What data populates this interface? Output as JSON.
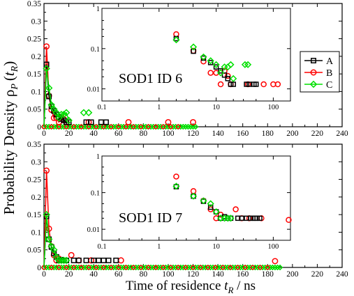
{
  "figure": {
    "ylabel_main": "Probability Density ρ",
    "ylabel_sub": "P",
    "ylabel_paren_open": "(",
    "ylabel_t": "t",
    "ylabel_t_sub": "R",
    "ylabel_paren_close": ")",
    "xlabel_main": "Time of residence ",
    "xlabel_t": "t",
    "xlabel_sub": "R",
    "xlabel_unit": " / ns"
  },
  "legend": {
    "entries": [
      "A",
      "B",
      "C"
    ],
    "colors": {
      "A": "#000000",
      "B": "#ff0000",
      "C": "#00e000"
    },
    "markers": {
      "A": "square",
      "B": "circle",
      "C": "diamond"
    },
    "placement": "right of inset, top panel"
  },
  "chart_data": [
    {
      "type": "line",
      "panel": "top",
      "xlim": [
        0,
        240
      ],
      "ylim": [
        0,
        0.35
      ],
      "xticks": [
        "0",
        "20",
        "40",
        "60",
        "80",
        "100",
        "120",
        "140",
        "160",
        "180",
        "200",
        "220",
        "240"
      ],
      "yticks": [
        "0",
        "0.05",
        "0.1",
        "0.15",
        "0.2",
        "0.25",
        "0.3",
        "0.35"
      ],
      "series": [
        {
          "name": "A",
          "points": [
            [
              2,
              0.177
            ],
            [
              4,
              0.086
            ],
            [
              6,
              0.058
            ],
            [
              8,
              0.045
            ],
            [
              10,
              0.035
            ],
            [
              12,
              0.028
            ],
            [
              14,
              0.022
            ],
            [
              16,
              0.018
            ],
            [
              18,
              0.013
            ],
            [
              20,
              0.013
            ],
            [
              34,
              0.013
            ],
            [
              38,
              0.013
            ],
            [
              46,
              0.013
            ],
            [
              50,
              0.013
            ]
          ]
        },
        {
          "name": "B",
          "points": [
            [
              2,
              0.228
            ],
            [
              4,
              0.088
            ],
            [
              6,
              0.048
            ],
            [
              8,
              0.025
            ],
            [
              10,
              0.025
            ],
            [
              12,
              0.013
            ],
            [
              14,
              0.028
            ],
            [
              16,
              0.021
            ],
            [
              18,
              0.013
            ],
            [
              36,
              0.013
            ],
            [
              68,
              0.013
            ],
            [
              100,
              0.013
            ],
            [
              120,
              0.013
            ]
          ]
        },
        {
          "name": "C",
          "points": [
            [
              2,
              0.165
            ],
            [
              4,
              0.11
            ],
            [
              6,
              0.062
            ],
            [
              8,
              0.05
            ],
            [
              10,
              0.04
            ],
            [
              12,
              0.025
            ],
            [
              14,
              0.035
            ],
            [
              16,
              0.035
            ],
            [
              18,
              0.04
            ],
            [
              20,
              0.018
            ],
            [
              32,
              0.04
            ],
            [
              36,
              0.04
            ]
          ]
        }
      ],
      "zero_line_xmax": 122,
      "inset": {
        "title": "SOD1 ID 6",
        "xscale": "log",
        "yscale": "log",
        "xlim": [
          0.1,
          200
        ],
        "ylim": [
          0.005,
          1
        ],
        "xticks": [
          "0.1",
          "1",
          "10",
          "100"
        ],
        "yticks": [
          "0.01",
          "0.1",
          "1"
        ]
      }
    },
    {
      "type": "line",
      "panel": "bottom",
      "xlim": [
        0,
        240
      ],
      "ylim": [
        0,
        0.35
      ],
      "xticks": [
        "0",
        "20",
        "40",
        "60",
        "80",
        "100",
        "120",
        "140",
        "160",
        "180",
        "200",
        "220",
        "240"
      ],
      "yticks": [
        "0",
        "0.05",
        "0.1",
        "0.15",
        "0.2",
        "0.25",
        "0.3",
        "0.35"
      ],
      "series": [
        {
          "name": "A",
          "points": [
            [
              2,
              0.145
            ],
            [
              4,
              0.08
            ],
            [
              6,
              0.058
            ],
            [
              8,
              0.04
            ],
            [
              10,
              0.03
            ],
            [
              12,
              0.02
            ],
            [
              14,
              0.022
            ],
            [
              16,
              0.02
            ],
            [
              18,
              0.02
            ],
            [
              24,
              0.02
            ],
            [
              28,
              0.02
            ],
            [
              34,
              0.02
            ],
            [
              40,
              0.02
            ],
            [
              44,
              0.02
            ],
            [
              48,
              0.02
            ],
            [
              52,
              0.02
            ],
            [
              58,
              0.02
            ]
          ]
        },
        {
          "name": "B",
          "points": [
            [
              2,
              0.275
            ],
            [
              4,
              0.11
            ],
            [
              6,
              0.06
            ],
            [
              8,
              0.035
            ],
            [
              10,
              0.02
            ],
            [
              12,
              0.025
            ],
            [
              22,
              0.035
            ],
            [
              28,
              0.02
            ],
            [
              38,
              0.02
            ],
            [
              62,
              0.02
            ],
            [
              186,
              0.018
            ]
          ]
        },
        {
          "name": "C",
          "points": [
            [
              2,
              0.15
            ],
            [
              4,
              0.08
            ],
            [
              6,
              0.06
            ],
            [
              8,
              0.05
            ],
            [
              10,
              0.03
            ],
            [
              12,
              0.02
            ],
            [
              14,
              0.02
            ],
            [
              16,
              0.02
            ],
            [
              18,
              0.02
            ]
          ]
        }
      ],
      "zero_line_xmax": 190,
      "inset": {
        "title": "SOD1 ID 7",
        "xscale": "log",
        "yscale": "log",
        "xlim": [
          0.1,
          200
        ],
        "ylim": [
          0.005,
          1
        ],
        "xticks": [
          "0.1",
          "1",
          "10",
          "100"
        ],
        "yticks": [
          "0.01",
          "0.1",
          "1"
        ]
      }
    }
  ]
}
